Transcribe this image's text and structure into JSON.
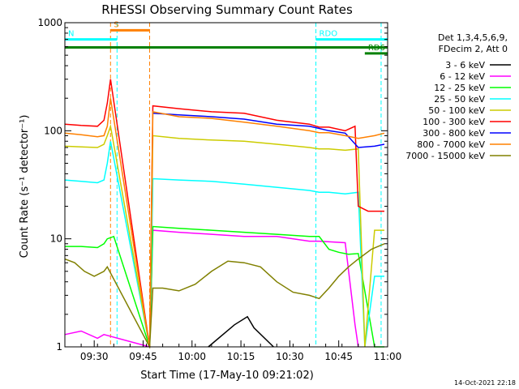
{
  "chart_data": {
    "type": "line",
    "title": "RHESSI Observing Summary Count Rates",
    "xlabel": "Start Time (17-May-10 09:21:02)",
    "ylabel": "Count Rate (s⁻¹ detector⁻¹)",
    "x_unit": "minutes after 09:21:02",
    "xlim": [
      0,
      99
    ],
    "ylim": [
      1,
      1000
    ],
    "yscale": "log",
    "x_ticks": [
      {
        "value": 9,
        "label": "09:30"
      },
      {
        "value": 24,
        "label": "09:45"
      },
      {
        "value": 39,
        "label": "10:00"
      },
      {
        "value": 54,
        "label": "10:15"
      },
      {
        "value": 69,
        "label": "10:30"
      },
      {
        "value": 84,
        "label": "10:45"
      },
      {
        "value": 99,
        "label": "11:00"
      }
    ],
    "y_ticks": [
      {
        "value": 1,
        "label": "1"
      },
      {
        "value": 10,
        "label": "10"
      },
      {
        "value": 100,
        "label": "100"
      },
      {
        "value": 1000,
        "label": "1000"
      }
    ],
    "legend": {
      "placement": "right",
      "header": [
        "Det 1,3,4,5,6,9,",
        "FDecim 2, Att 0"
      ]
    },
    "series": [
      {
        "name": "3 - 6 keV",
        "color": "#000000",
        "x": [
          44,
          52,
          56,
          58,
          64
        ],
        "y": [
          1,
          1.6,
          1.9,
          1.5,
          1
        ]
      },
      {
        "name": "6 - 12 keV",
        "color": "#ff00ff",
        "x": [
          0,
          5,
          10,
          12,
          26,
          27,
          35,
          45,
          55,
          65,
          75,
          78,
          86,
          89,
          90
        ],
        "y": [
          1.3,
          1.4,
          1.2,
          1.3,
          1,
          12,
          11.5,
          11,
          10.5,
          10.5,
          9.5,
          9.5,
          9.2,
          1.6,
          1
        ]
      },
      {
        "name": "12 - 25 keV",
        "color": "#00ff00",
        "x": [
          0,
          5,
          10,
          12,
          13,
          15,
          26,
          27,
          35,
          45,
          55,
          65,
          75,
          78,
          81,
          84,
          87,
          90,
          95,
          98
        ],
        "y": [
          8.5,
          8.5,
          8.3,
          9,
          10,
          10.5,
          1,
          13,
          12.5,
          12,
          11.5,
          11,
          10.5,
          10.5,
          8,
          7.5,
          7.2,
          7.3,
          1,
          1
        ]
      },
      {
        "name": "25 - 50 keV",
        "color": "#00ffff",
        "x": [
          0,
          5,
          10,
          12,
          13,
          14,
          26,
          27,
          35,
          45,
          55,
          65,
          75,
          78,
          81,
          86,
          90,
          92,
          95,
          98
        ],
        "y": [
          35,
          34,
          33,
          35,
          50,
          80,
          1,
          36,
          35,
          34,
          32,
          30,
          28,
          27,
          27,
          26,
          27,
          1,
          4.5,
          4.5
        ]
      },
      {
        "name": "50 - 100 keV",
        "color": "#cccc00",
        "x": [
          0,
          5,
          10,
          12,
          13,
          14,
          26,
          27,
          35,
          45,
          55,
          65,
          75,
          78,
          81,
          86,
          90,
          92,
          95,
          98
        ],
        "y": [
          72,
          71,
          70,
          75,
          90,
          110,
          1,
          90,
          85,
          82,
          80,
          75,
          70,
          68,
          68,
          66,
          68,
          1,
          12,
          12
        ]
      },
      {
        "name": "100 - 300 keV",
        "color": "#ff0000",
        "x": [
          0,
          5,
          10,
          12,
          13,
          14,
          26,
          27,
          35,
          45,
          55,
          65,
          75,
          78,
          81,
          86,
          89,
          90,
          93,
          98
        ],
        "y": [
          115,
          112,
          110,
          125,
          180,
          300,
          1,
          170,
          160,
          150,
          145,
          125,
          115,
          108,
          108,
          100,
          110,
          20,
          18,
          18
        ]
      },
      {
        "name": "300 - 800 keV",
        "color": "#0000ff",
        "x": [
          27,
          35,
          45,
          55,
          65,
          75,
          78,
          81,
          86,
          90,
          95,
          98
        ],
        "y": [
          145,
          140,
          135,
          128,
          115,
          110,
          105,
          100,
          95,
          70,
          72,
          75
        ]
      },
      {
        "name": "800 - 7000 keV",
        "color": "#ff8000",
        "x": [
          0,
          5,
          10,
          12,
          13,
          14,
          26,
          27,
          35,
          45,
          55,
          65,
          75,
          78,
          81,
          86,
          90,
          95,
          98
        ],
        "y": [
          95,
          92,
          88,
          90,
          110,
          200,
          1,
          150,
          135,
          130,
          120,
          110,
          100,
          96,
          96,
          90,
          85,
          90,
          95
        ]
      },
      {
        "name": "7000 - 15000 keV",
        "color": "#808000",
        "x": [
          0,
          3,
          6,
          9,
          12,
          13,
          26,
          27,
          30,
          35,
          40,
          45,
          50,
          55,
          60,
          65,
          70,
          75,
          78,
          81,
          84,
          87,
          90,
          94,
          98
        ],
        "y": [
          6.5,
          6,
          5,
          4.5,
          5,
          5.5,
          1,
          3.5,
          3.5,
          3.3,
          3.8,
          5,
          6.2,
          6,
          5.5,
          4,
          3.2,
          3.0,
          2.8,
          3.5,
          4.5,
          5.5,
          6.5,
          8,
          9
        ]
      }
    ],
    "annotations": [
      {
        "label": "S",
        "color": "#ff8000",
        "x_start": 14,
        "x_end": 26,
        "y": 850
      },
      {
        "label": "N",
        "color": "#00ffff",
        "x_start": -4,
        "x_end": 16,
        "y": 700
      },
      {
        "label": "RDO",
        "color": "#00ffff",
        "x_start": 77,
        "x_end": 99,
        "y": 700
      },
      {
        "label": "",
        "color": "#008000",
        "x_start": -4,
        "x_end": 99,
        "y": 590
      },
      {
        "label": "RD6",
        "color": "#008000",
        "x_start": 92,
        "x_end": 99,
        "y": 520
      }
    ],
    "vlines": [
      {
        "x": 14,
        "color": "#ff8000"
      },
      {
        "x": 26,
        "color": "#ff8000"
      },
      {
        "x": 16,
        "color": "#00ffff"
      },
      {
        "x": 77,
        "color": "#00ffff"
      },
      {
        "x": 97,
        "color": "#00ffff"
      },
      {
        "x": 0,
        "color": "#00ffff"
      }
    ]
  },
  "timestamp": "14-Oct-2021 22:18"
}
